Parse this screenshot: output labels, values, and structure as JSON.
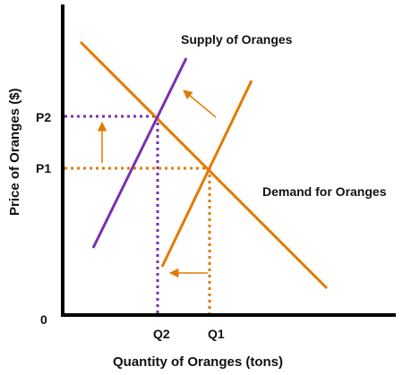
{
  "labels": {
    "supply": "Supply of Oranges",
    "demand": "Demand for Oranges",
    "y_axis": "Price of Oranges ($)",
    "x_axis": "Quantity of Oranges (tons)",
    "origin": "0",
    "p1": "P1",
    "p2": "P2",
    "q1": "Q1",
    "q2": "Q2"
  },
  "colors": {
    "orange": "#E07B00",
    "purple": "#7A2FB0",
    "axis": "#000000"
  }
}
